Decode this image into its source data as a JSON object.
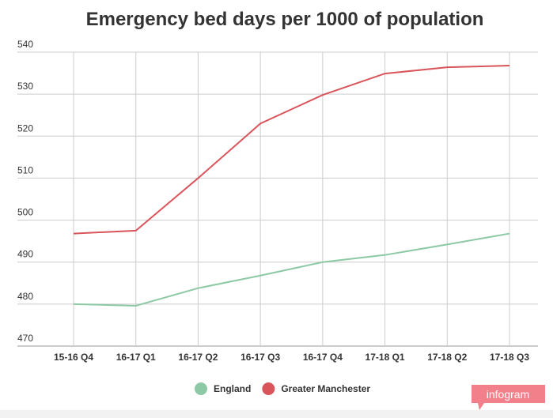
{
  "chart_data": {
    "type": "line",
    "title": "Emergency bed days per 1000 of population",
    "categories": [
      "15-16 Q4",
      "16-17 Q1",
      "16-17 Q2",
      "16-17 Q3",
      "16-17 Q4",
      "17-18 Q1",
      "17-18 Q2",
      "17-18 Q3"
    ],
    "series": [
      {
        "name": "England",
        "color": "#8cc9a4",
        "values": [
          480,
          479.6,
          483.8,
          486.8,
          490,
          491.7,
          494.2,
          496.8
        ]
      },
      {
        "name": "Greater Manchester",
        "color": "#d9555b",
        "values": [
          496.8,
          497.5,
          510,
          523,
          529.8,
          534.9,
          536.4,
          536.8
        ]
      }
    ],
    "ylim": [
      470,
      540
    ],
    "yticks": [
      470,
      480,
      490,
      500,
      510,
      520,
      530,
      540
    ],
    "grid": true,
    "branding": "infogram"
  }
}
